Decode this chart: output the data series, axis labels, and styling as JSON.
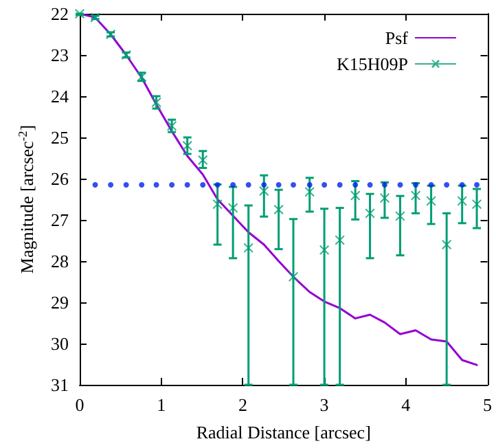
{
  "chart_data": {
    "type": "scatter",
    "xlabel": "Radial Distance [arcsec]",
    "ylabel": "Magnitude [arcsec$^{-2}$]",
    "xlim": [
      0,
      5
    ],
    "xticks": [
      0,
      1,
      2,
      3,
      4,
      5
    ],
    "ylim": [
      31,
      22
    ],
    "yticks": [
      22,
      23,
      24,
      25,
      26,
      27,
      28,
      29,
      30,
      31
    ],
    "legend": "top right",
    "series": [
      {
        "name": "Psf",
        "type": "line",
        "color": "#9400d3",
        "marker": "none",
        "line_style": "solid",
        "x": [
          0,
          0.19,
          0.38,
          0.57,
          0.76,
          0.94,
          1.13,
          1.32,
          1.51,
          1.69,
          1.88,
          2.07,
          2.26,
          2.44,
          2.62,
          2.82,
          3.0,
          3.19,
          3.38,
          3.56,
          3.74,
          3.93,
          4.12,
          4.31,
          4.5,
          4.69,
          4.87
        ],
        "values": [
          22,
          22.09,
          22.5,
          23.0,
          23.55,
          24.2,
          24.85,
          25.45,
          25.9,
          26.5,
          26.9,
          27.3,
          27.6,
          28.0,
          28.38,
          28.75,
          28.98,
          29.14,
          29.39,
          29.3,
          29.49,
          29.77,
          29.68,
          29.9,
          29.95,
          30.4,
          30.52
        ]
      },
      {
        "name": "K15H09P",
        "color": "#009e73",
        "marker": "cross",
        "x": [
          0,
          0.19,
          0.38,
          0.57,
          0.76,
          0.94,
          1.13,
          1.32,
          1.51,
          1.69,
          1.88,
          2.07,
          2.26,
          2.44,
          2.62,
          2.82,
          3.0,
          3.19,
          3.38,
          3.56,
          3.74,
          3.93,
          4.12,
          4.31,
          4.5,
          4.69,
          4.87
        ],
        "values": [
          22,
          22.09,
          22.5,
          23.0,
          23.53,
          24.15,
          24.72,
          25.2,
          25.55,
          26.62,
          26.71,
          27.68,
          26.3,
          26.75,
          28.38,
          26.32,
          27.73,
          27.49,
          26.41,
          26.84,
          26.47,
          26.91,
          26.41,
          26.54,
          27.6,
          26.54,
          26.62
        ],
        "errors": [
          [
            22,
            22.03
          ],
          0.04,
          0.05,
          0.06,
          0.1,
          0.15,
          0.15,
          [
            25.0,
            25.4
          ],
          [
            25.33,
            25.74
          ],
          [
            26.14,
            27.6
          ],
          [
            26.2,
            27.93
          ],
          [
            26.65,
            31
          ],
          [
            25.92,
            26.92
          ],
          [
            26.27,
            27.71
          ],
          [
            26.98,
            31
          ],
          [
            25.98,
            26.8
          ],
          [
            26.73,
            31
          ],
          [
            26.71,
            31
          ],
          [
            26.06,
            26.99
          ],
          [
            26.37,
            27.93
          ],
          [
            26.09,
            26.95
          ],
          [
            26.42,
            27.86
          ],
          [
            26.11,
            26.84
          ],
          [
            26.17,
            27.1
          ],
          [
            26.84,
            31
          ],
          [
            26.17,
            27.08
          ],
          [
            26.25,
            27.2
          ]
        ]
      },
      {
        "type": "scatter",
        "color": "#0022ee",
        "marker": "circle",
        "x": [
          0.19,
          0.38,
          0.57,
          0.76,
          0.94,
          1.13,
          1.32,
          1.51,
          1.69,
          1.88,
          2.07,
          2.26,
          2.44,
          2.62,
          2.82,
          3.0,
          3.19,
          3.38,
          3.56,
          3.74,
          3.93,
          4.12,
          4.31,
          4.5,
          4.69,
          4.87
        ],
        "values": [
          26.15,
          26.15,
          26.15,
          26.15,
          26.15,
          26.15,
          26.15,
          26.15,
          26.15,
          26.15,
          26.15,
          26.15,
          26.15,
          26.15,
          26.15,
          26.15,
          26.15,
          26.15,
          26.15,
          26.15,
          26.15,
          26.15,
          26.15,
          26.15,
          26.15,
          26.15
        ]
      }
    ]
  }
}
